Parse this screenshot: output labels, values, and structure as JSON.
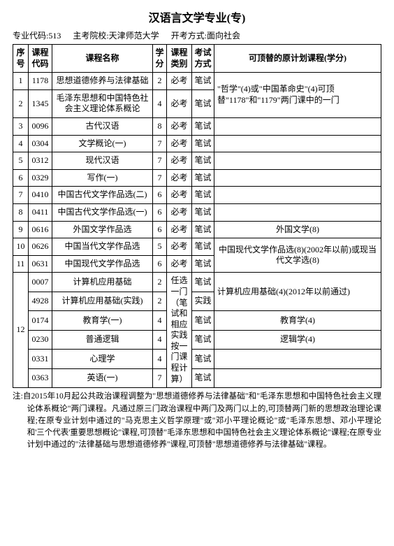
{
  "title": "汉语言文学专业(专)",
  "subhead": {
    "code_label": "专业代码:513",
    "school_label": "主考院校:天津师范大学",
    "mode_label": "开考方式:面向社会"
  },
  "headers": {
    "seq": "序号",
    "code": "课程代码",
    "name": "课程名称",
    "credit": "学分",
    "category": "课程类别",
    "exam": "考试方式",
    "substitute": "可顶替的原计划课程(学分)"
  },
  "shared": {
    "bixiu": "必考",
    "bishi": "笔试",
    "shijian": "实践",
    "elective_category": "任选一门（笔试和相应实践按一门课程计算）"
  },
  "rows": {
    "r1": {
      "seq": "1",
      "code": "1178",
      "name": "思想道德修养与法律基础",
      "credit": "2"
    },
    "r2": {
      "seq": "2",
      "code": "1345",
      "name": "毛泽东思想和中国特色社会主义理论体系概论",
      "credit": "4"
    },
    "sub12": "\"哲学\"(4)或\"中国革命史\"(4)可顶替\"1178\"和\"1179\"两门课中的一门",
    "r3": {
      "seq": "3",
      "code": "0096",
      "name": "古代汉语",
      "credit": "8"
    },
    "r4": {
      "seq": "4",
      "code": "0304",
      "name": "文学概论(一)",
      "credit": "7"
    },
    "r5": {
      "seq": "5",
      "code": "0312",
      "name": "现代汉语",
      "credit": "7"
    },
    "r6": {
      "seq": "6",
      "code": "0329",
      "name": "写作(一)",
      "credit": "7"
    },
    "r7": {
      "seq": "7",
      "code": "0410",
      "name": "中国古代文学作品选(二)",
      "credit": "6"
    },
    "r8": {
      "seq": "8",
      "code": "0411",
      "name": "中国古代文学作品选(一)",
      "credit": "6"
    },
    "r9": {
      "seq": "9",
      "code": "0616",
      "name": "外国文学作品选",
      "credit": "6",
      "sub": "外国文学(8)"
    },
    "r10": {
      "seq": "10",
      "code": "0626",
      "name": "中国当代文学作品选",
      "credit": "5"
    },
    "r11": {
      "seq": "11",
      "code": "0631",
      "name": "中国现代文学作品选",
      "credit": "6"
    },
    "sub1011": "中国现代文学作品选(8)(2002年以前)或现当代文学选(8)",
    "r12seq": "12",
    "g1": {
      "code": "0007",
      "name": "计算机应用基础",
      "credit": "2"
    },
    "g2": {
      "code": "4928",
      "name": "计算机应用基础(实践)",
      "credit": "2"
    },
    "subg12": "计算机应用基础(4)(2012年以前通过)",
    "g3": {
      "code": "0174",
      "name": "教育学(一)",
      "credit": "4",
      "sub": "教育学(4)"
    },
    "g4": {
      "code": "0230",
      "name": "普通逻辑",
      "credit": "4",
      "sub": "逻辑学(4)"
    },
    "g5": {
      "code": "0331",
      "name": "心理学",
      "credit": "4"
    },
    "g6": {
      "code": "0363",
      "name": "英语(一)",
      "credit": "7"
    }
  },
  "note": "注:自2015年10月起公共政治课程调整为\"思想道德修养与法律基础\"和\"毛泽东思想和中国特色社会主义理论体系概论\"两门课程。凡通过原三门政治课程中两门及两门以上的,可顶替两门新的思想政治理论课程;在原专业计划中通过的\"马克思主义哲学原理\"或\"邓小平理论概论\"或\"毛泽东思想、邓小平理论和'三个代表'重要思想概论\"课程,可顶替\"毛泽东思想和中国特色社会主义理论体系概论\"课程;在原专业计划中通过的\"法律基础与思想道德修养\"课程,可顶替\"思想道德修养与法律基础\"课程。"
}
